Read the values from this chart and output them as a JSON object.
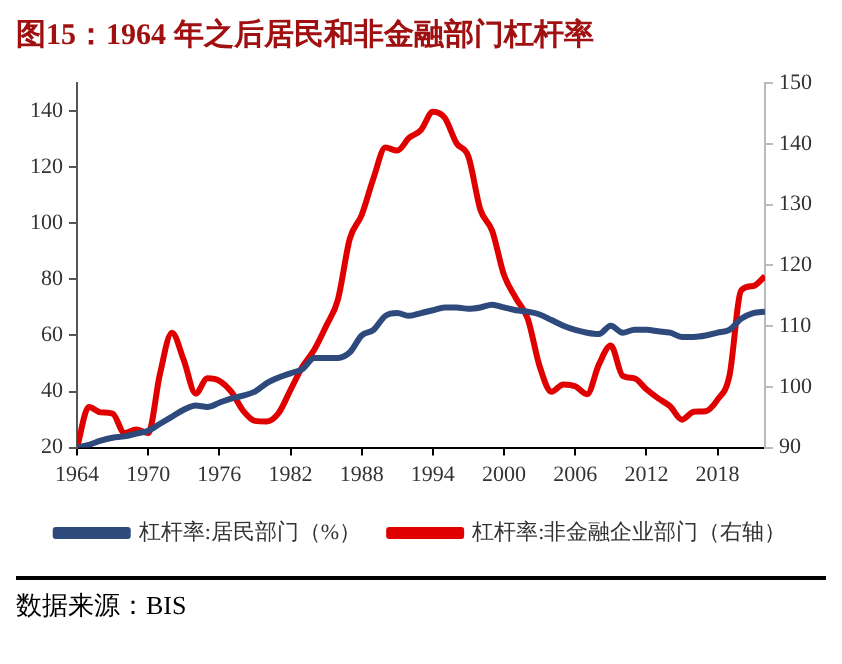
{
  "chart_data": {
    "type": "line",
    "title": "图15：1964 年之后居民和非金融部门杠杆率",
    "x": [
      1964,
      1965,
      1966,
      1967,
      1968,
      1969,
      1970,
      1971,
      1972,
      1973,
      1974,
      1975,
      1976,
      1977,
      1978,
      1979,
      1980,
      1981,
      1982,
      1983,
      1984,
      1985,
      1986,
      1987,
      1988,
      1989,
      1990,
      1991,
      1992,
      1993,
      1994,
      1995,
      1996,
      1997,
      1998,
      1999,
      2000,
      2001,
      2002,
      2003,
      2004,
      2005,
      2006,
      2007,
      2008,
      2009,
      2010,
      2011,
      2012,
      2013,
      2014,
      2015,
      2016,
      2017,
      2018,
      2019,
      2020,
      2021,
      2022
    ],
    "series": [
      {
        "name": "杠杆率:居民部门（%）",
        "color": "#2e4a7d",
        "values": [
          20,
          21,
          22.5,
          23.5,
          24,
          25,
          26,
          28.5,
          31,
          33.5,
          35,
          34.5,
          36,
          37.5,
          38.5,
          40,
          43,
          45,
          46.5,
          48,
          52,
          52,
          52,
          54,
          60,
          62,
          67,
          68,
          67,
          68,
          69,
          70,
          70,
          69.5,
          70,
          71,
          70,
          69,
          68.5,
          67.5,
          65.5,
          63.5,
          62,
          61,
          60.5,
          63.5,
          61,
          62,
          62,
          61.5,
          61,
          59.5,
          59.5,
          60,
          61,
          62,
          66,
          68,
          68.5
        ]
      },
      {
        "name": "杠杆率:非金融企业部门（右轴）",
        "color": "#e00000",
        "axis": "y2",
        "values": [
          90,
          96.7,
          95.8,
          95.6,
          92.4,
          93,
          92.4,
          102.2,
          108.9,
          104.4,
          98.9,
          101.4,
          101,
          99.2,
          96.1,
          94.4,
          94.3,
          95.7,
          99.5,
          103.3,
          106.1,
          110,
          114.4,
          124.4,
          128.3,
          134.4,
          139.4,
          138.9,
          141,
          142.3,
          145.3,
          144.3,
          140.1,
          137.9,
          129.2,
          125.7,
          118.4,
          114.6,
          111.2,
          103.4,
          99.2,
          100.4,
          100.1,
          98.8,
          103.7,
          106.8,
          101.8,
          101.4,
          99.6,
          98.1,
          96.8,
          94.6,
          95.9,
          96,
          97.9,
          101.8,
          115.9,
          116.6,
          118.2
        ]
      }
    ],
    "xlim": [
      1964,
      2022
    ],
    "xticks": [
      1964,
      1970,
      1976,
      1982,
      1988,
      1994,
      2000,
      2006,
      2012,
      2018
    ],
    "ylim": [
      20,
      150
    ],
    "yticks": [
      20,
      40,
      60,
      80,
      100,
      120,
      140
    ],
    "y2lim": [
      90,
      150
    ],
    "y2ticks": [
      90,
      100,
      110,
      120,
      130,
      140,
      150
    ],
    "legend": "bottom",
    "marker": "none",
    "annotations": [
      "数据来源：BIS"
    ]
  }
}
